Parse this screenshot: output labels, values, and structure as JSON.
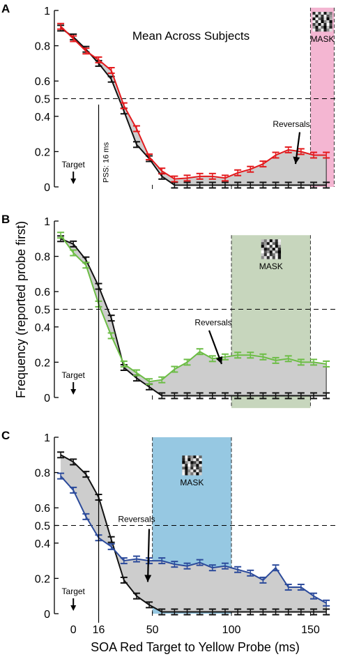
{
  "figure": {
    "ylabel": "Frequency (reported probe first)",
    "xlabel": "SOA Red Target to Yellow Probe (ms)",
    "xticks": [
      "0",
      "16",
      "50",
      "100",
      "150"
    ],
    "pss_label": "PSS: 16 ms",
    "colors": {
      "black": "#111111",
      "grey_fill": "#cdcdcd",
      "red": "#e3191c",
      "green": "#6cbd45",
      "blue": "#2b4a9b",
      "pink_mask": "#f4b6d2",
      "green_mask": "#c7d6bd",
      "blue_mask": "#96c8e2"
    }
  },
  "chart_data": [
    {
      "type": "line",
      "panel_label": "A",
      "title": "Mean Across Subjects",
      "x": [
        -8,
        0,
        8,
        16,
        24,
        32,
        40,
        48,
        56,
        64,
        72,
        80,
        88,
        96,
        104,
        112,
        120,
        128,
        136,
        144,
        152,
        160
      ],
      "ylim": [
        0,
        1
      ],
      "y_ticks": [
        "0",
        "0.2",
        "0.4",
        "0.5",
        "0.6",
        "0.8",
        "1"
      ],
      "series": [
        {
          "color": "red",
          "values": [
            0.91,
            0.84,
            0.77,
            0.72,
            0.66,
            0.46,
            0.33,
            0.17,
            0.09,
            0.045,
            0.05,
            0.06,
            0.06,
            0.05,
            0.08,
            0.1,
            0.13,
            0.18,
            0.21,
            0.2,
            0.18,
            0.18
          ]
        },
        {
          "color": "black",
          "values": [
            0.9,
            0.85,
            0.78,
            0.7,
            0.61,
            0.43,
            0.24,
            0.16,
            0.06,
            0.01,
            0.01,
            0.01,
            0.01,
            0.01,
            0.01,
            0.01,
            0.01,
            0.01,
            0.01,
            0.01,
            0.01,
            0.01
          ]
        }
      ],
      "annotations": [
        "Target",
        "Reversals",
        "MASK"
      ],
      "mask_window_ms": [
        150,
        165
      ]
    },
    {
      "type": "line",
      "panel_label": "B",
      "x": [
        -8,
        0,
        8,
        16,
        24,
        32,
        40,
        48,
        56,
        64,
        72,
        80,
        88,
        96,
        104,
        112,
        120,
        128,
        136,
        144,
        152,
        160
      ],
      "ylim": [
        0,
        1
      ],
      "y_ticks": [
        "0",
        "0.2",
        "0.4",
        "0.5",
        "0.6",
        "0.8",
        "1"
      ],
      "series": [
        {
          "color": "green",
          "values": [
            0.92,
            0.82,
            0.75,
            0.53,
            0.35,
            0.19,
            0.14,
            0.09,
            0.1,
            0.16,
            0.2,
            0.26,
            0.22,
            0.23,
            0.24,
            0.24,
            0.23,
            0.21,
            0.22,
            0.2,
            0.2,
            0.19
          ]
        },
        {
          "color": "black",
          "values": [
            0.9,
            0.87,
            0.78,
            0.63,
            0.45,
            0.17,
            0.11,
            0.06,
            0.01,
            0.01,
            0.01,
            0.01,
            0.01,
            0.01,
            0.01,
            0.01,
            0.01,
            0.01,
            0.01,
            0.01,
            0.01,
            0.01
          ]
        }
      ],
      "annotations": [
        "Target",
        "Reversals",
        "MASK"
      ],
      "mask_window_ms": [
        100,
        150
      ]
    },
    {
      "type": "line",
      "panel_label": "C",
      "x": [
        -8,
        0,
        8,
        16,
        24,
        32,
        40,
        48,
        56,
        64,
        72,
        80,
        88,
        96,
        104,
        112,
        120,
        128,
        136,
        144,
        152,
        160
      ],
      "ylim": [
        0,
        1
      ],
      "y_ticks": [
        "0",
        "0.2",
        "0.4",
        "0.5",
        "0.6",
        "0.8",
        "1"
      ],
      "series": [
        {
          "color": "blue",
          "values": [
            0.78,
            0.7,
            0.55,
            0.43,
            0.38,
            0.3,
            0.31,
            0.3,
            0.3,
            0.28,
            0.27,
            0.29,
            0.26,
            0.27,
            0.25,
            0.23,
            0.19,
            0.26,
            0.15,
            0.15,
            0.1,
            0.06
          ]
        },
        {
          "color": "black",
          "values": [
            0.9,
            0.86,
            0.79,
            0.66,
            0.42,
            0.19,
            0.1,
            0.05,
            0.01,
            0.01,
            0.01,
            0.01,
            0.01,
            0.01,
            0.01,
            0.01,
            0.01,
            0.01,
            0.01,
            0.01,
            0.01,
            0.01
          ]
        }
      ],
      "annotations": [
        "Target",
        "Reversals",
        "MASK"
      ],
      "mask_window_ms": [
        50,
        100
      ]
    }
  ]
}
